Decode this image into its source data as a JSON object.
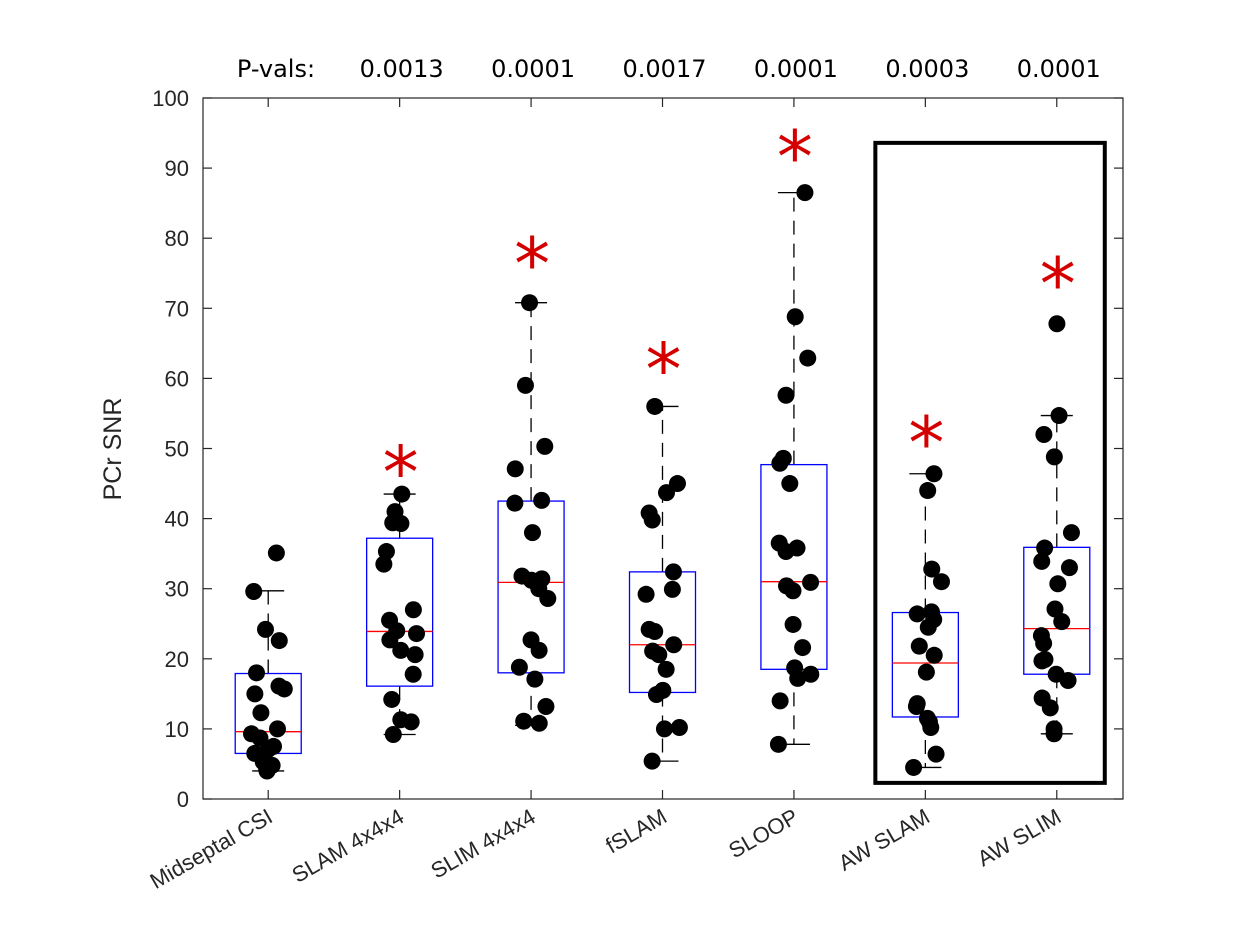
{
  "chart_data": {
    "type": "box",
    "title": "",
    "xlabel": "",
    "ylabel": "PCr SNR",
    "ylim": [
      0,
      100
    ],
    "yticks": [
      0,
      10,
      20,
      30,
      40,
      50,
      60,
      70,
      80,
      90,
      100
    ],
    "grid": false,
    "pvals_label": "P-vals:",
    "categories": [
      "Midseptal CSI",
      "SLAM 4x4x4",
      "SLIM 4x4x4",
      "fSLAM",
      "SLOOP",
      "AW SLAM",
      "AW SLIM"
    ],
    "pvals": [
      "",
      "0.0013",
      "0.0001",
      "0.0017",
      "0.0001",
      "0.0003",
      "0.0001"
    ],
    "significance_marker": "*",
    "significant": [
      false,
      true,
      true,
      true,
      true,
      true,
      true
    ],
    "highlight_group": [
      "AW SLAM",
      "AW SLIM"
    ],
    "colors": {
      "box": "#0000ff",
      "median": "#ff0000",
      "whisker": "#000000",
      "points": "#000000",
      "star": "#d40000",
      "highlight": "#000000"
    },
    "boxes": [
      {
        "q1": 6.5,
        "median": 9.6,
        "q3": 17.9,
        "whisker_low": 4.0,
        "whisker_high": 29.7
      },
      {
        "q1": 16.1,
        "median": 23.9,
        "q3": 37.2,
        "whisker_low": 9.2,
        "whisker_high": 43.5
      },
      {
        "q1": 18.0,
        "median": 30.9,
        "q3": 42.5,
        "whisker_low": 10.5,
        "whisker_high": 70.8
      },
      {
        "q1": 15.2,
        "median": 22.0,
        "q3": 32.4,
        "whisker_low": 5.4,
        "whisker_high": 56.0
      },
      {
        "q1": 18.5,
        "median": 31.0,
        "q3": 47.7,
        "whisker_low": 7.8,
        "whisker_high": 86.5
      },
      {
        "q1": 11.7,
        "median": 19.4,
        "q3": 26.6,
        "whisker_low": 4.5,
        "whisker_high": 46.4
      },
      {
        "q1": 17.8,
        "median": 24.3,
        "q3": 35.9,
        "whisker_low": 9.3,
        "whisker_high": 54.7
      }
    ],
    "points": [
      [
        35.1,
        29.6,
        24.2,
        22.6,
        18.0,
        16.1,
        15.0,
        15.7,
        12.3,
        10.0,
        9.3,
        8.7,
        7.5,
        7.1,
        6.5,
        5.3,
        4.8,
        4.3,
        4.0
      ],
      [
        43.5,
        41.0,
        39.4,
        39.3,
        35.3,
        33.5,
        27.0,
        25.5,
        24.0,
        23.6,
        22.7,
        21.2,
        20.6,
        17.8,
        14.2,
        11.3,
        11.0,
        9.2
      ],
      [
        70.8,
        59.0,
        50.3,
        47.1,
        42.6,
        42.2,
        38.0,
        31.8,
        31.2,
        31.4,
        30.0,
        28.6,
        22.7,
        21.2,
        18.8,
        17.1,
        13.2,
        11.1,
        10.8
      ],
      [
        56.0,
        45.0,
        43.7,
        40.8,
        39.8,
        32.4,
        29.9,
        29.2,
        24.2,
        23.9,
        22.0,
        21.1,
        20.6,
        18.5,
        15.5,
        14.9,
        10.2,
        10.0,
        5.4
      ],
      [
        86.5,
        68.8,
        62.9,
        57.6,
        48.6,
        47.9,
        45.0,
        36.5,
        35.8,
        35.3,
        30.9,
        30.4,
        29.7,
        24.9,
        21.6,
        18.7,
        17.8,
        17.2,
        14.0,
        7.8
      ],
      [
        46.4,
        44.0,
        32.8,
        31.0,
        26.7,
        26.4,
        25.6,
        24.5,
        21.8,
        20.5,
        18.1,
        13.6,
        13.2,
        11.5,
        11.0,
        10.2,
        6.4,
        4.5
      ],
      [
        67.8,
        54.7,
        52.0,
        48.8,
        38.0,
        35.8,
        33.9,
        33.0,
        30.7,
        27.1,
        25.3,
        23.3,
        22.2,
        19.9,
        19.7,
        17.8,
        16.9,
        14.4,
        13.0,
        10.0,
        9.3
      ]
    ],
    "star_values": [
      null,
      49.3,
      79.0,
      64.0,
      94.3,
      53.5,
      76.2
    ]
  }
}
